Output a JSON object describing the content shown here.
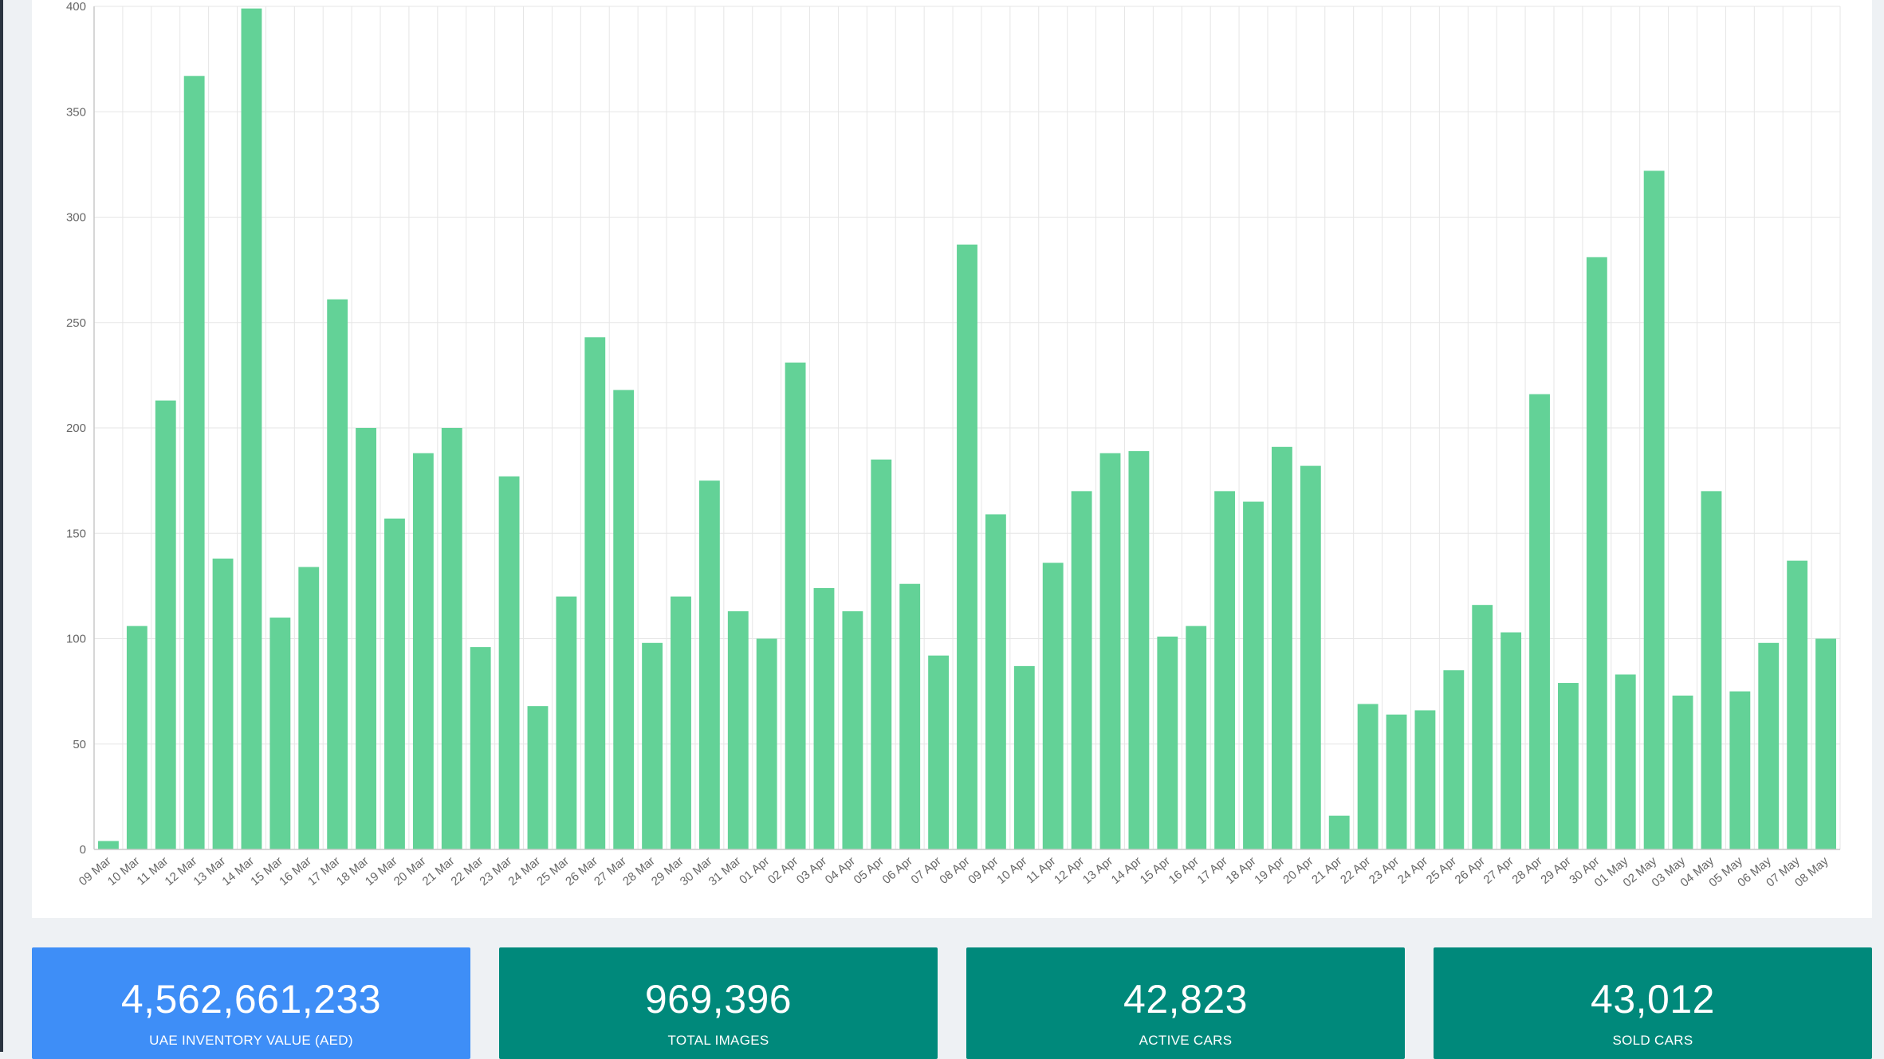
{
  "colors": {
    "bar": "#63d297",
    "card_blue": "#3e8ef7",
    "card_teal": "#00897b",
    "background": "#eef1f4"
  },
  "chart_data": {
    "type": "bar",
    "grid": true,
    "ylim": [
      0,
      400
    ],
    "yticks": [
      0,
      50,
      100,
      150,
      200,
      250,
      300,
      350,
      400
    ],
    "categories": [
      "09 Mar",
      "10 Mar",
      "11 Mar",
      "12 Mar",
      "13 Mar",
      "14 Mar",
      "15 Mar",
      "16 Mar",
      "17 Mar",
      "18 Mar",
      "19 Mar",
      "20 Mar",
      "21 Mar",
      "22 Mar",
      "23 Mar",
      "24 Mar",
      "25 Mar",
      "26 Mar",
      "27 Mar",
      "28 Mar",
      "29 Mar",
      "30 Mar",
      "31 Mar",
      "01 Apr",
      "02 Apr",
      "03 Apr",
      "04 Apr",
      "05 Apr",
      "06 Apr",
      "07 Apr",
      "08 Apr",
      "09 Apr",
      "10 Apr",
      "11 Apr",
      "12 Apr",
      "13 Apr",
      "14 Apr",
      "15 Apr",
      "16 Apr",
      "17 Apr",
      "18 Apr",
      "19 Apr",
      "20 Apr",
      "21 Apr",
      "22 Apr",
      "23 Apr",
      "24 Apr",
      "25 Apr",
      "26 Apr",
      "27 Apr",
      "28 Apr",
      "29 Apr",
      "30 Apr",
      "01 May",
      "02 May",
      "03 May",
      "04 May",
      "05 May",
      "06 May",
      "07 May",
      "08 May"
    ],
    "values": [
      4,
      106,
      213,
      367,
      138,
      399,
      110,
      134,
      261,
      200,
      157,
      188,
      200,
      96,
      177,
      68,
      120,
      243,
      218,
      98,
      120,
      175,
      113,
      100,
      231,
      124,
      113,
      185,
      126,
      92,
      287,
      159,
      87,
      136,
      170,
      188,
      189,
      101,
      106,
      170,
      165,
      191,
      182,
      16,
      69,
      64,
      66,
      85,
      116,
      103,
      216,
      79,
      281,
      83,
      322,
      73,
      170,
      75,
      98,
      137,
      100
    ]
  },
  "stats": [
    {
      "value": "4,562,661,233",
      "label": "UAE INVENTORY VALUE (AED)",
      "color": "#3e8ef7"
    },
    {
      "value": "969,396",
      "label": "TOTAL IMAGES",
      "color": "#00897b"
    },
    {
      "value": "42,823",
      "label": "ACTIVE CARS",
      "color": "#00897b"
    },
    {
      "value": "43,012",
      "label": "SOLD CARS",
      "color": "#00897b"
    }
  ]
}
